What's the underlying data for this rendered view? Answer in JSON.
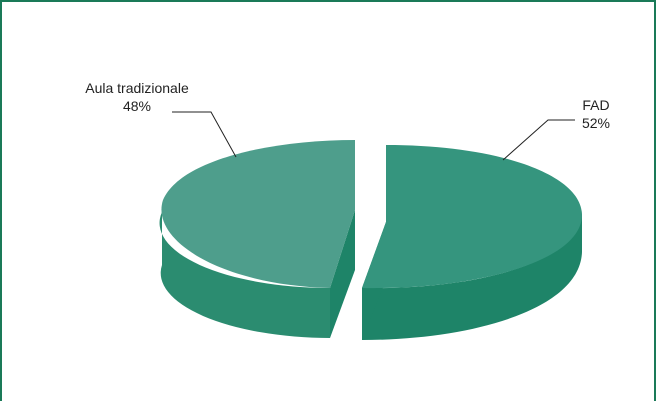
{
  "colors": {
    "frame": "#1a7a58",
    "fad_top": "#35957e",
    "fad_side": "#1e8468",
    "aula_top": "#4e9e8c",
    "aula_side": "#2b8c70",
    "leader": "#222222"
  },
  "chart_data": {
    "type": "pie",
    "style": "3d-exploded",
    "title": "",
    "legend": "none",
    "slices": [
      {
        "name": "FAD",
        "value": 52,
        "value_label": "52%"
      },
      {
        "name": "Aula tradizionale",
        "value": 48,
        "value_label": "48%"
      }
    ]
  }
}
